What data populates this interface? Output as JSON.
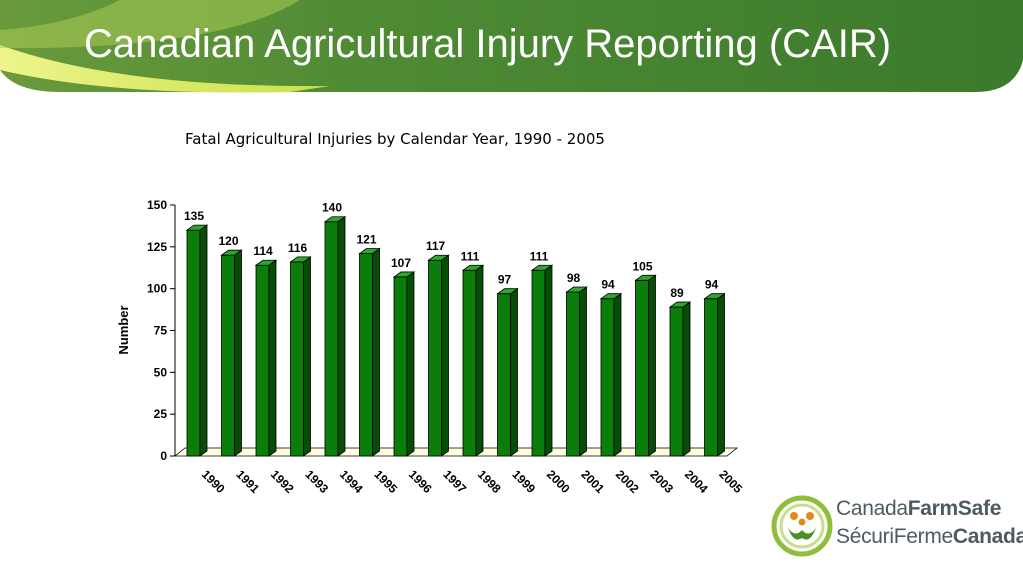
{
  "slide": {
    "title": "Canadian Agricultural Injury Reporting (CAIR)"
  },
  "logo": {
    "en_prefix": "Canada",
    "en_bold": "FarmSafe",
    "fr_prefix": "SécuriFerme",
    "fr_bold": "Canada"
  },
  "colors": {
    "bar_front": "#0a7d0a",
    "bar_side": "#064d06",
    "bar_top": "#2aa82a",
    "floor": "#fffde0",
    "banner_dark": "#3f8a2e",
    "banner_light": "#d4e84a"
  },
  "chart_data": {
    "type": "bar",
    "title": "Fatal Agricultural Injuries by Calendar Year, 1990 - 2005",
    "xlabel": "",
    "ylabel": "Number",
    "categories": [
      "1990",
      "1991",
      "1992",
      "1993",
      "1994",
      "1995",
      "1996",
      "1997",
      "1998",
      "1999",
      "2000",
      "2001",
      "2002",
      "2003",
      "2004",
      "2005"
    ],
    "values": [
      135,
      120,
      114,
      116,
      140,
      121,
      107,
      117,
      111,
      97,
      111,
      98,
      94,
      105,
      89,
      94
    ],
    "ylim": [
      0,
      150
    ],
    "yticks": [
      0,
      25,
      50,
      75,
      100,
      125,
      150
    ],
    "grid": false,
    "legend": "none",
    "style": "3d-column"
  }
}
